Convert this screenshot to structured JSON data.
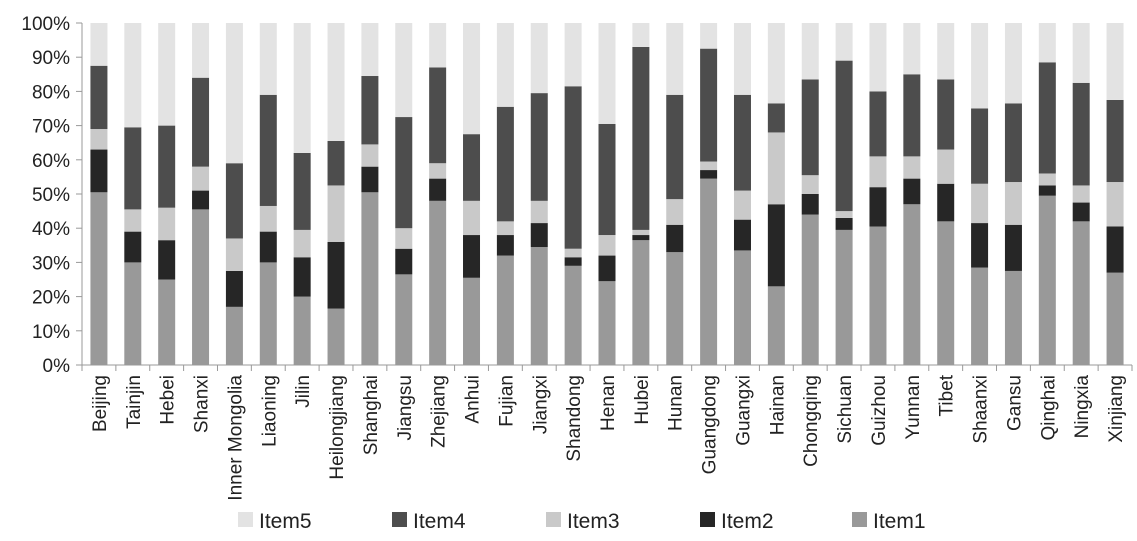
{
  "chart_data": {
    "type": "bar",
    "stacked": true,
    "percent": true,
    "title": "",
    "xlabel": "",
    "ylabel": "",
    "ylim": [
      0,
      100
    ],
    "yticks": [
      "0%",
      "10%",
      "20%",
      "30%",
      "40%",
      "50%",
      "60%",
      "70%",
      "80%",
      "90%",
      "100%"
    ],
    "legend_position": "bottom",
    "categories": [
      "Beijing",
      "Tainjin",
      "Hebei",
      "Shanxi",
      "Inner Mongolia",
      "Liaoning",
      "Jilin",
      "Heilongjiang",
      "Shanghai",
      "Jiangsu",
      "Zhejiang",
      "Anhui",
      "Fujian",
      "Jiangxi",
      "Shandong",
      "Henan",
      "Hubei",
      "Hunan",
      "Guangdong",
      "Guangxi",
      "Hainan",
      "Chongqing",
      "Sichuan",
      "Guizhou",
      "Yunnan",
      "Tibet",
      "Shaanxi",
      "Gansu",
      "Qinghai",
      "Ningxia",
      "Xinjiang"
    ],
    "series": [
      {
        "name": "Item1",
        "color": "#999999",
        "values": [
          50.5,
          30,
          25,
          45.5,
          17,
          30,
          20,
          16.5,
          50.5,
          26.5,
          48,
          25.5,
          32,
          34.5,
          29,
          24.5,
          36.5,
          33,
          54.5,
          33.5,
          23,
          44,
          39.5,
          40.5,
          47,
          42,
          28.5,
          27.5,
          49.5,
          42,
          27
        ]
      },
      {
        "name": "Item2",
        "color": "#262626",
        "values": [
          12.5,
          9,
          11.5,
          5.5,
          10.5,
          9,
          11.5,
          19.5,
          7.5,
          7.5,
          6.5,
          12.5,
          6,
          7,
          2.5,
          7.5,
          1.5,
          8,
          2.5,
          9,
          24,
          6,
          3.5,
          11.5,
          7.5,
          11,
          13,
          13.5,
          3,
          5.5,
          13.5
        ]
      },
      {
        "name": "Item3",
        "color": "#c9c9c9",
        "values": [
          6,
          6.5,
          9.5,
          7,
          9.5,
          7.5,
          8,
          16.5,
          6.5,
          6,
          4.5,
          10,
          4,
          6.5,
          2.5,
          6,
          1.5,
          7.5,
          2.5,
          8.5,
          21,
          5.5,
          2,
          9,
          6.5,
          10,
          11.5,
          12.5,
          3.5,
          5,
          13
        ]
      },
      {
        "name": "Item4",
        "color": "#4d4d4d",
        "values": [
          18.5,
          24,
          24,
          26,
          22,
          32.5,
          22.5,
          13,
          20,
          32.5,
          28,
          19.5,
          33.5,
          31.5,
          47.5,
          32.5,
          53.5,
          30.5,
          33,
          28,
          8.5,
          28,
          44,
          19,
          24,
          20.5,
          22,
          23,
          32.5,
          30,
          24
        ]
      },
      {
        "name": "Item5",
        "color": "#e3e3e3",
        "values": [
          12.5,
          30.5,
          30,
          16,
          41,
          21,
          38,
          34.5,
          15.5,
          27.5,
          13,
          32.5,
          24.5,
          20.5,
          18.5,
          29.5,
          7,
          21,
          7.5,
          21,
          23.5,
          16.5,
          11,
          20,
          15,
          16.5,
          25,
          23.5,
          11.5,
          17.5,
          22.5
        ]
      }
    ],
    "legend_order": [
      "Item5",
      "Item4",
      "Item3",
      "Item2",
      "Item1"
    ]
  }
}
